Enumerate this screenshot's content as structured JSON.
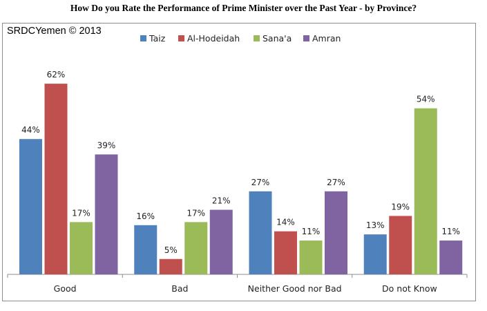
{
  "chart_data": {
    "type": "bar",
    "title": "How Do you Rate the Performance of Prime Minister over the Past Year - by Province?",
    "source": "SRDCYemen © 2013",
    "categories": [
      "Good",
      "Bad",
      "Neither Good nor Bad",
      "Do not Know"
    ],
    "series": [
      {
        "name": "Taiz",
        "color": "#4f81bd",
        "values": [
          44,
          16,
          27,
          13
        ],
        "labels": [
          "44%",
          "16%",
          "27%",
          "13%"
        ]
      },
      {
        "name": "Al-Hodeidah",
        "color": "#c0504d",
        "values": [
          62,
          5,
          14,
          19
        ],
        "labels": [
          "62%",
          "5%",
          "14%",
          "19%"
        ]
      },
      {
        "name": "Sana'a",
        "color": "#9bbb59",
        "values": [
          17,
          17,
          11,
          54
        ],
        "labels": [
          "17%",
          "17%",
          "11%",
          "54%"
        ]
      },
      {
        "name": "Amran",
        "color": "#8064a2",
        "values": [
          39,
          21,
          27,
          11
        ],
        "labels": [
          "39%",
          "21%",
          "27%",
          "11%"
        ]
      }
    ],
    "ylim": [
      0,
      70
    ],
    "grid": false,
    "legend_position": "top"
  }
}
